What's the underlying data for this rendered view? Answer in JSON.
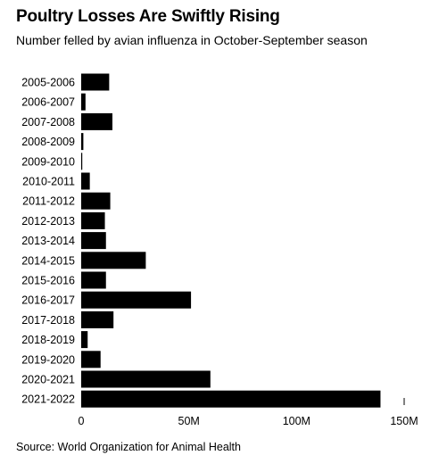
{
  "chart_data": {
    "type": "bar",
    "orientation": "horizontal",
    "title": "Poultry Losses Are Swiftly Rising",
    "subtitle": "Number felled by avian influenza in October-September season",
    "source": "Source: World Organization for Animal Health",
    "xlim": [
      0,
      150000000
    ],
    "x_ticks": [
      0,
      50000000,
      100000000,
      150000000
    ],
    "x_tick_labels": [
      "0",
      "50M",
      "100M",
      "150M"
    ],
    "categories": [
      "2005-2006",
      "2006-2007",
      "2007-2008",
      "2008-2009",
      "2009-2010",
      "2010-2011",
      "2011-2012",
      "2012-2013",
      "2013-2014",
      "2014-2015",
      "2015-2016",
      "2016-2017",
      "2017-2018",
      "2018-2019",
      "2019-2020",
      "2020-2021",
      "2021-2022"
    ],
    "values": [
      13000000,
      2000000,
      14500000,
      1000000,
      500000,
      4000000,
      13500000,
      11000000,
      11500000,
      30000000,
      11500000,
      51000000,
      15000000,
      3000000,
      9000000,
      60000000,
      139000000
    ],
    "bar_color": "#000000",
    "grid": false
  }
}
